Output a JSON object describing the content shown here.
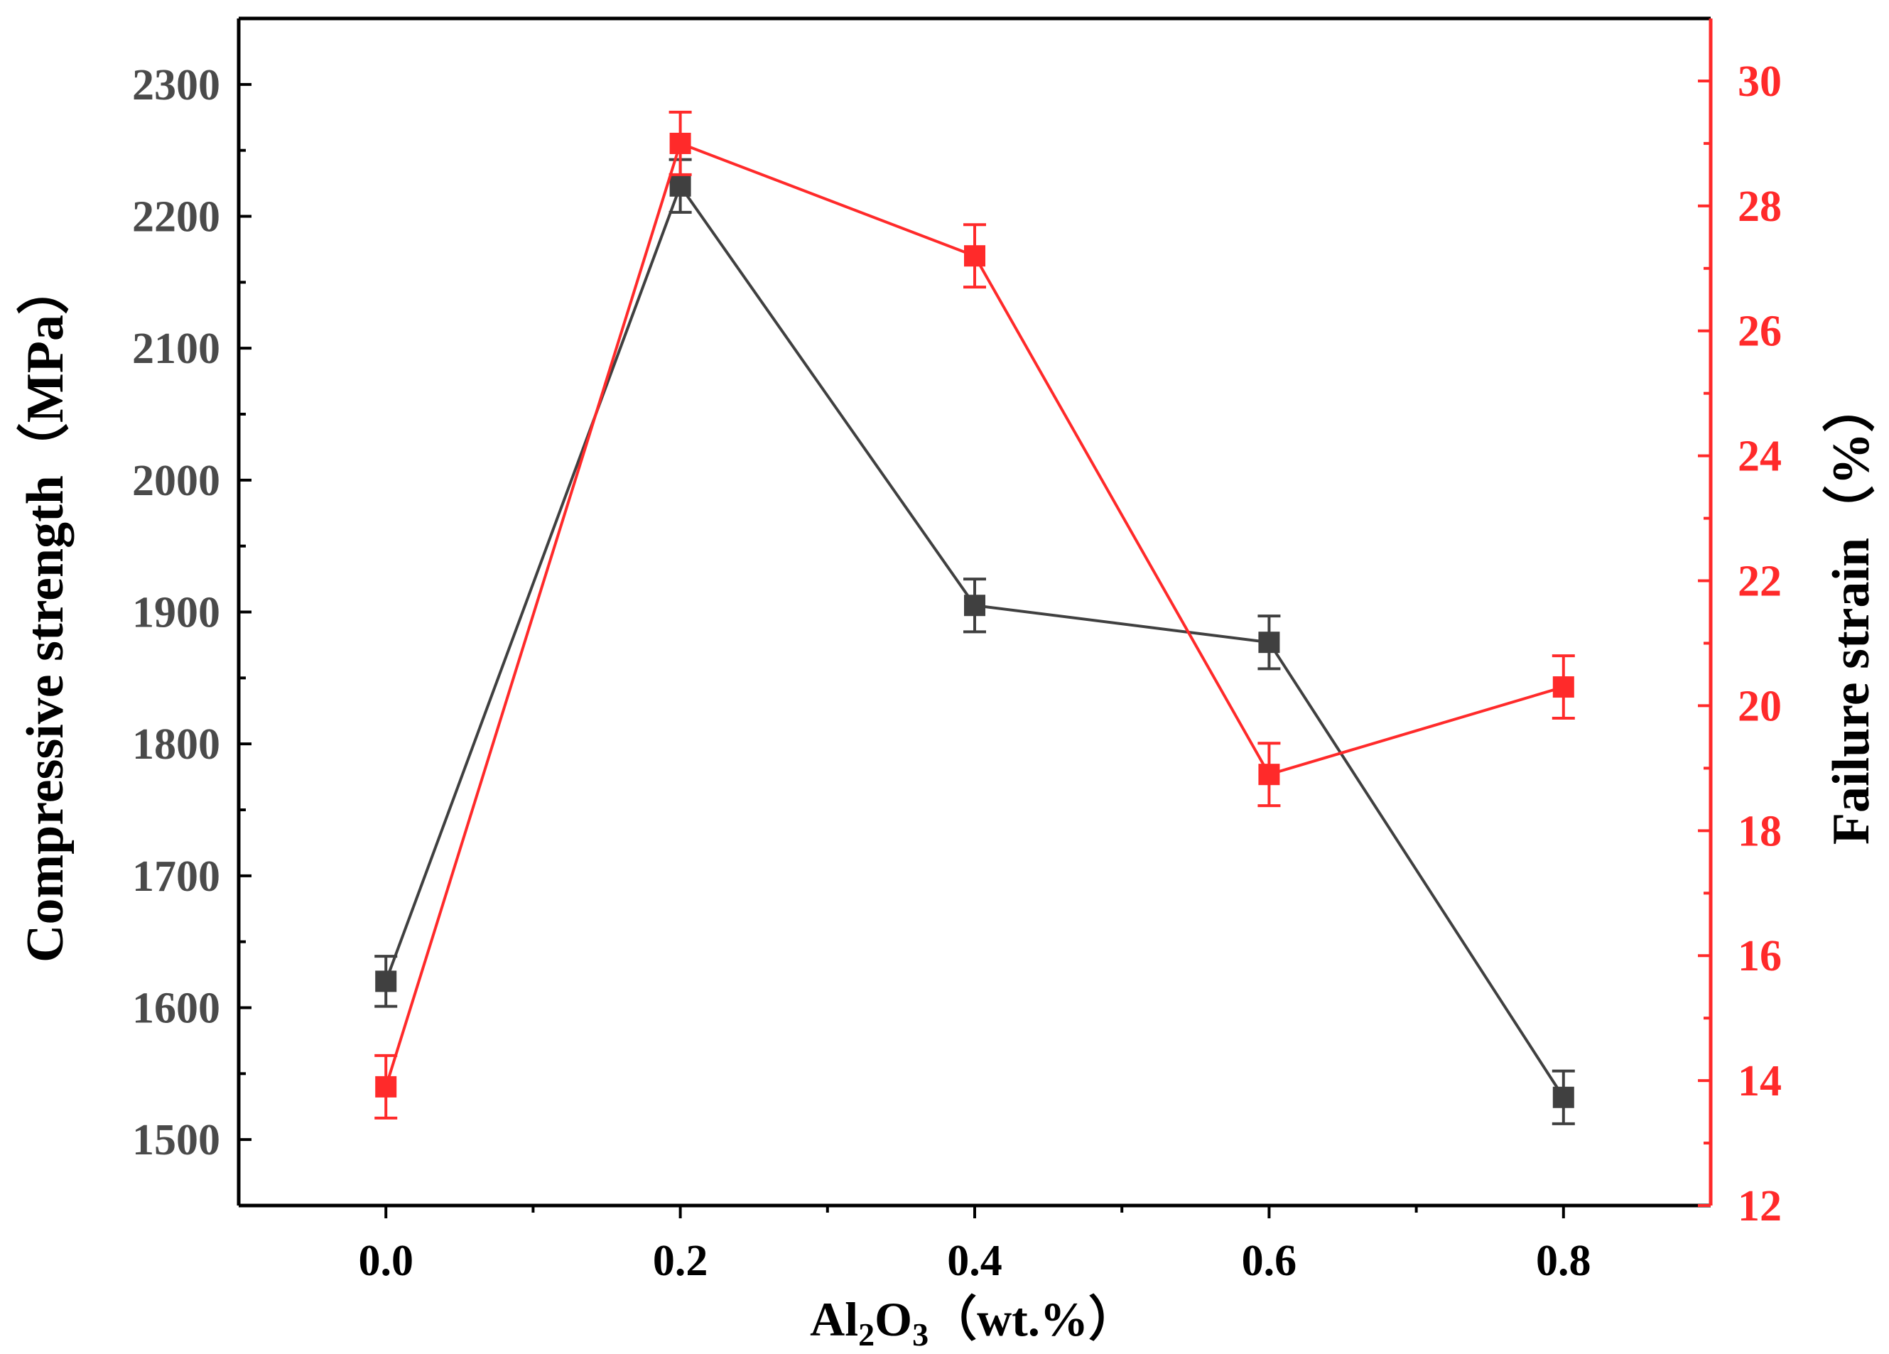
{
  "chart_data": {
    "type": "line",
    "title": "",
    "xlabel": {
      "prefix": "Al",
      "sub1": "2",
      "mid": "O",
      "sub2": "3",
      "suffix": "（wt.%）"
    },
    "ylabel_left": "Compressive strength（MPa）",
    "ylabel_right": "Failure strain（%）",
    "x": [
      0.0,
      0.2,
      0.4,
      0.6,
      0.8
    ],
    "x_tick_labels": [
      "0.0",
      "0.2",
      "0.4",
      "0.6",
      "0.8"
    ],
    "xlim": [
      -0.1,
      0.9
    ],
    "ylim_left": [
      1450,
      2350
    ],
    "ylim_right": [
      12,
      31
    ],
    "y_left_ticks": [
      1500,
      1600,
      1700,
      1800,
      1900,
      2000,
      2100,
      2200,
      2300
    ],
    "y_left_tick_labels": [
      "1500",
      "1600",
      "1700",
      "1800",
      "1900",
      "2000",
      "2100",
      "2200",
      "2300"
    ],
    "y_right_ticks": [
      12,
      14,
      16,
      18,
      20,
      22,
      24,
      26,
      28,
      30
    ],
    "y_right_tick_labels": [
      "12",
      "14",
      "16",
      "18",
      "20",
      "22",
      "24",
      "26",
      "28",
      "30"
    ],
    "grid": false,
    "series": [
      {
        "name": "Compressive strength",
        "axis": "left",
        "color": "#404040",
        "values": [
          1620,
          2223,
          1905,
          1877,
          1532
        ],
        "errors": [
          19,
          20,
          20,
          20,
          20
        ]
      },
      {
        "name": "Failure strain",
        "axis": "right",
        "color": "#ff2a2a",
        "values": [
          13.9,
          29.0,
          27.2,
          18.9,
          20.3
        ],
        "errors": [
          0.5,
          0.5,
          0.5,
          0.5,
          0.5
        ]
      }
    ]
  }
}
